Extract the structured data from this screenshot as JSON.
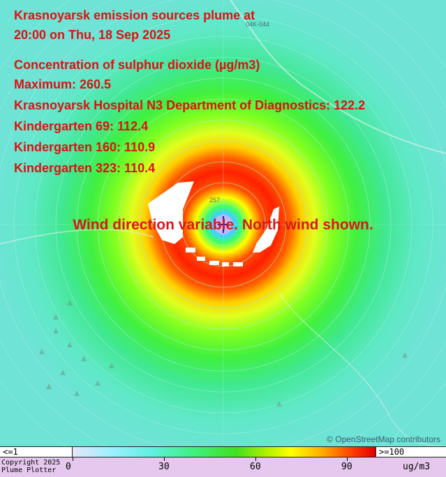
{
  "title": {
    "line1": "Krasnoyarsk emission sources plume at",
    "line2": "20:00 on Thu, 18 Sep 2025"
  },
  "info": {
    "pollutant": "Concentration of sulphur dioxide (µg/m3)",
    "maximum": "Maximum: 260.5",
    "receptors": [
      "Krasnoyarsk Hospital N3 Department of Diagnostics: 122.2",
      "Kindergarten 69: 112.4",
      "Kindergarten 160: 110.9",
      "Kindergarten 323: 110.4"
    ]
  },
  "wind_note": "Wind direction variable. North wind shown.",
  "map_labels": {
    "road": "04K-044",
    "road2": "257"
  },
  "attribution": "© OpenStreetMap contributors",
  "legend": {
    "min_label": "<=1",
    "max_label": ">=100",
    "ticks": [
      "0",
      "30",
      "60",
      "90"
    ],
    "unit": "ug/m3",
    "copyright_line1": "Copyright 2025",
    "copyright_line2": "Plume Plotter"
  },
  "colors": {
    "background": "#6fe3d6",
    "plume_green": "#40e030",
    "plume_yellow": "#ffff00",
    "plume_red": "#ff2000",
    "text_red": "#e01010",
    "legend_footer": "#e6c8ee"
  }
}
